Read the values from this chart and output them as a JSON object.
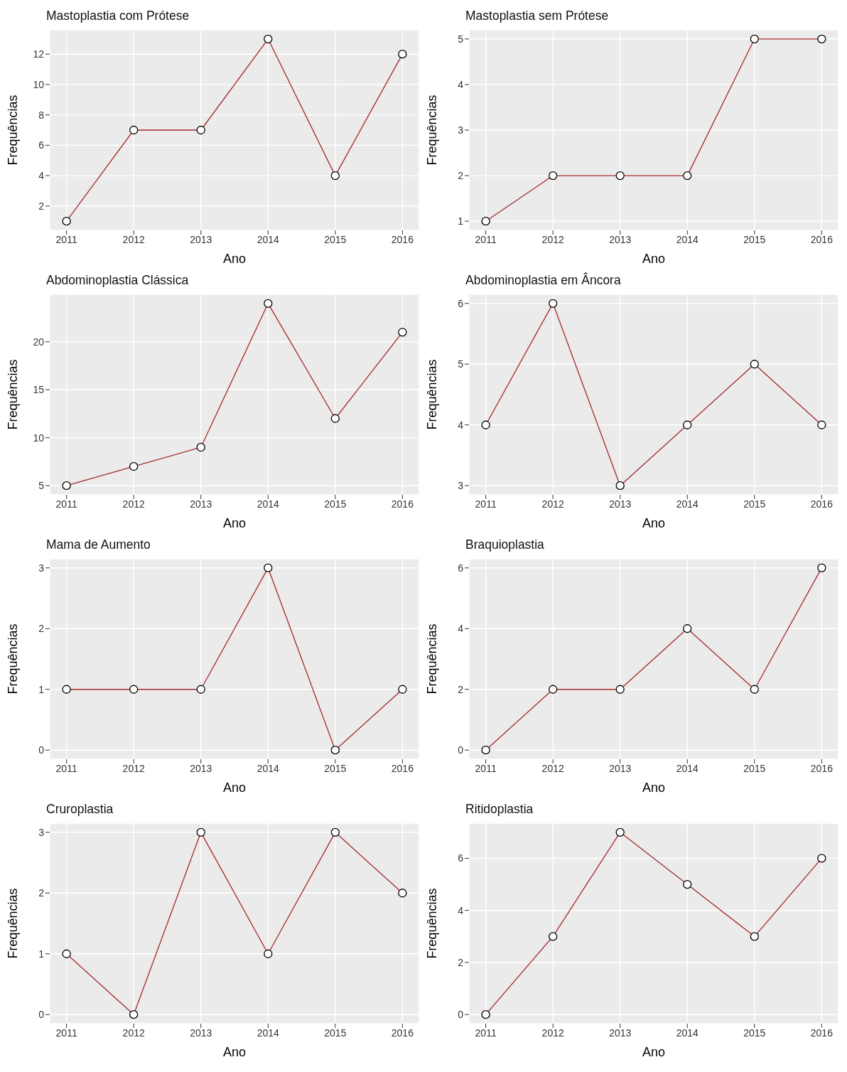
{
  "chart_data": [
    {
      "type": "line",
      "title": "Mastoplastia com Prótese",
      "xlabel": "Ano",
      "ylabel": "Frequências",
      "x": [
        2011,
        2012,
        2013,
        2014,
        2015,
        2016
      ],
      "values": [
        1,
        7,
        7,
        13,
        4,
        12
      ],
      "color": "#a52a2a",
      "marker": "circle",
      "xlim": [
        2010.75,
        2016.25
      ],
      "xticks": [
        2011,
        2012,
        2013,
        2014,
        2015,
        2016
      ],
      "ylim": [
        0.4,
        13.6
      ],
      "yticks": [
        2,
        4,
        6,
        8,
        10,
        12
      ],
      "grid": true
    },
    {
      "type": "line",
      "title": "Mastoplastia sem Prótese",
      "xlabel": "Ano",
      "ylabel": "Frequências",
      "x": [
        2011,
        2012,
        2013,
        2014,
        2015,
        2016
      ],
      "values": [
        1,
        2,
        2,
        2,
        5,
        5
      ],
      "color": "#a52a2a",
      "marker": "circle",
      "xlim": [
        2010.75,
        2016.25
      ],
      "xticks": [
        2011,
        2012,
        2013,
        2014,
        2015,
        2016
      ],
      "ylim": [
        0.8,
        5.2
      ],
      "yticks": [
        1,
        2,
        3,
        4,
        5
      ],
      "grid": true
    },
    {
      "type": "line",
      "title": "Abdominoplastia Clássica",
      "xlabel": "Ano",
      "ylabel": "Frequências",
      "x": [
        2011,
        2012,
        2013,
        2014,
        2015,
        2016
      ],
      "values": [
        5,
        7,
        9,
        24,
        12,
        21
      ],
      "color": "#a52a2a",
      "marker": "circle",
      "xlim": [
        2010.75,
        2016.25
      ],
      "xticks": [
        2011,
        2012,
        2013,
        2014,
        2015,
        2016
      ],
      "ylim": [
        4.05,
        24.95
      ],
      "yticks": [
        5,
        10,
        15,
        20
      ],
      "grid": true
    },
    {
      "type": "line",
      "title": "Abdominoplastia em Âncora",
      "xlabel": "Ano",
      "ylabel": "Frequências",
      "x": [
        2011,
        2012,
        2013,
        2014,
        2015,
        2016
      ],
      "values": [
        4,
        6,
        3,
        4,
        5,
        4
      ],
      "color": "#a52a2a",
      "marker": "circle",
      "xlim": [
        2010.75,
        2016.25
      ],
      "xticks": [
        2011,
        2012,
        2013,
        2014,
        2015,
        2016
      ],
      "ylim": [
        2.85,
        6.15
      ],
      "yticks": [
        3,
        4,
        5,
        6
      ],
      "grid": true
    },
    {
      "type": "line",
      "title": "Mama de Aumento",
      "xlabel": "Ano",
      "ylabel": "Frequências",
      "x": [
        2011,
        2012,
        2013,
        2014,
        2015,
        2016
      ],
      "values": [
        1,
        1,
        1,
        3,
        0,
        1
      ],
      "color": "#a52a2a",
      "marker": "circle",
      "xlim": [
        2010.75,
        2016.25
      ],
      "xticks": [
        2011,
        2012,
        2013,
        2014,
        2015,
        2016
      ],
      "ylim": [
        -0.15,
        3.15
      ],
      "yticks": [
        0,
        1,
        2,
        3
      ],
      "grid": true
    },
    {
      "type": "line",
      "title": "Braquioplastia",
      "xlabel": "Ano",
      "ylabel": "Frequências",
      "x": [
        2011,
        2012,
        2013,
        2014,
        2015,
        2016
      ],
      "values": [
        0,
        2,
        2,
        4,
        2,
        6
      ],
      "color": "#a52a2a",
      "marker": "circle",
      "xlim": [
        2010.75,
        2016.25
      ],
      "xticks": [
        2011,
        2012,
        2013,
        2014,
        2015,
        2016
      ],
      "ylim": [
        -0.3,
        6.3
      ],
      "yticks": [
        0,
        2,
        4,
        6
      ],
      "grid": true
    },
    {
      "type": "line",
      "title": "Cruroplastia",
      "xlabel": "Ano",
      "ylabel": "Frequências",
      "x": [
        2011,
        2012,
        2013,
        2014,
        2015,
        2016
      ],
      "values": [
        1,
        0,
        3,
        1,
        3,
        2
      ],
      "color": "#a52a2a",
      "marker": "circle",
      "xlim": [
        2010.75,
        2016.25
      ],
      "xticks": [
        2011,
        2012,
        2013,
        2014,
        2015,
        2016
      ],
      "ylim": [
        -0.15,
        3.15
      ],
      "yticks": [
        0,
        1,
        2,
        3
      ],
      "grid": true
    },
    {
      "type": "line",
      "title": "Ritidoplastia",
      "xlabel": "Ano",
      "ylabel": "Frequências",
      "x": [
        2011,
        2012,
        2013,
        2014,
        2015,
        2016
      ],
      "values": [
        0,
        3,
        7,
        5,
        3,
        6
      ],
      "color": "#a52a2a",
      "marker": "circle",
      "xlim": [
        2010.75,
        2016.25
      ],
      "xticks": [
        2011,
        2012,
        2013,
        2014,
        2015,
        2016
      ],
      "ylim": [
        -0.35,
        7.35
      ],
      "yticks": [
        0,
        2,
        4,
        6
      ],
      "grid": true
    }
  ]
}
